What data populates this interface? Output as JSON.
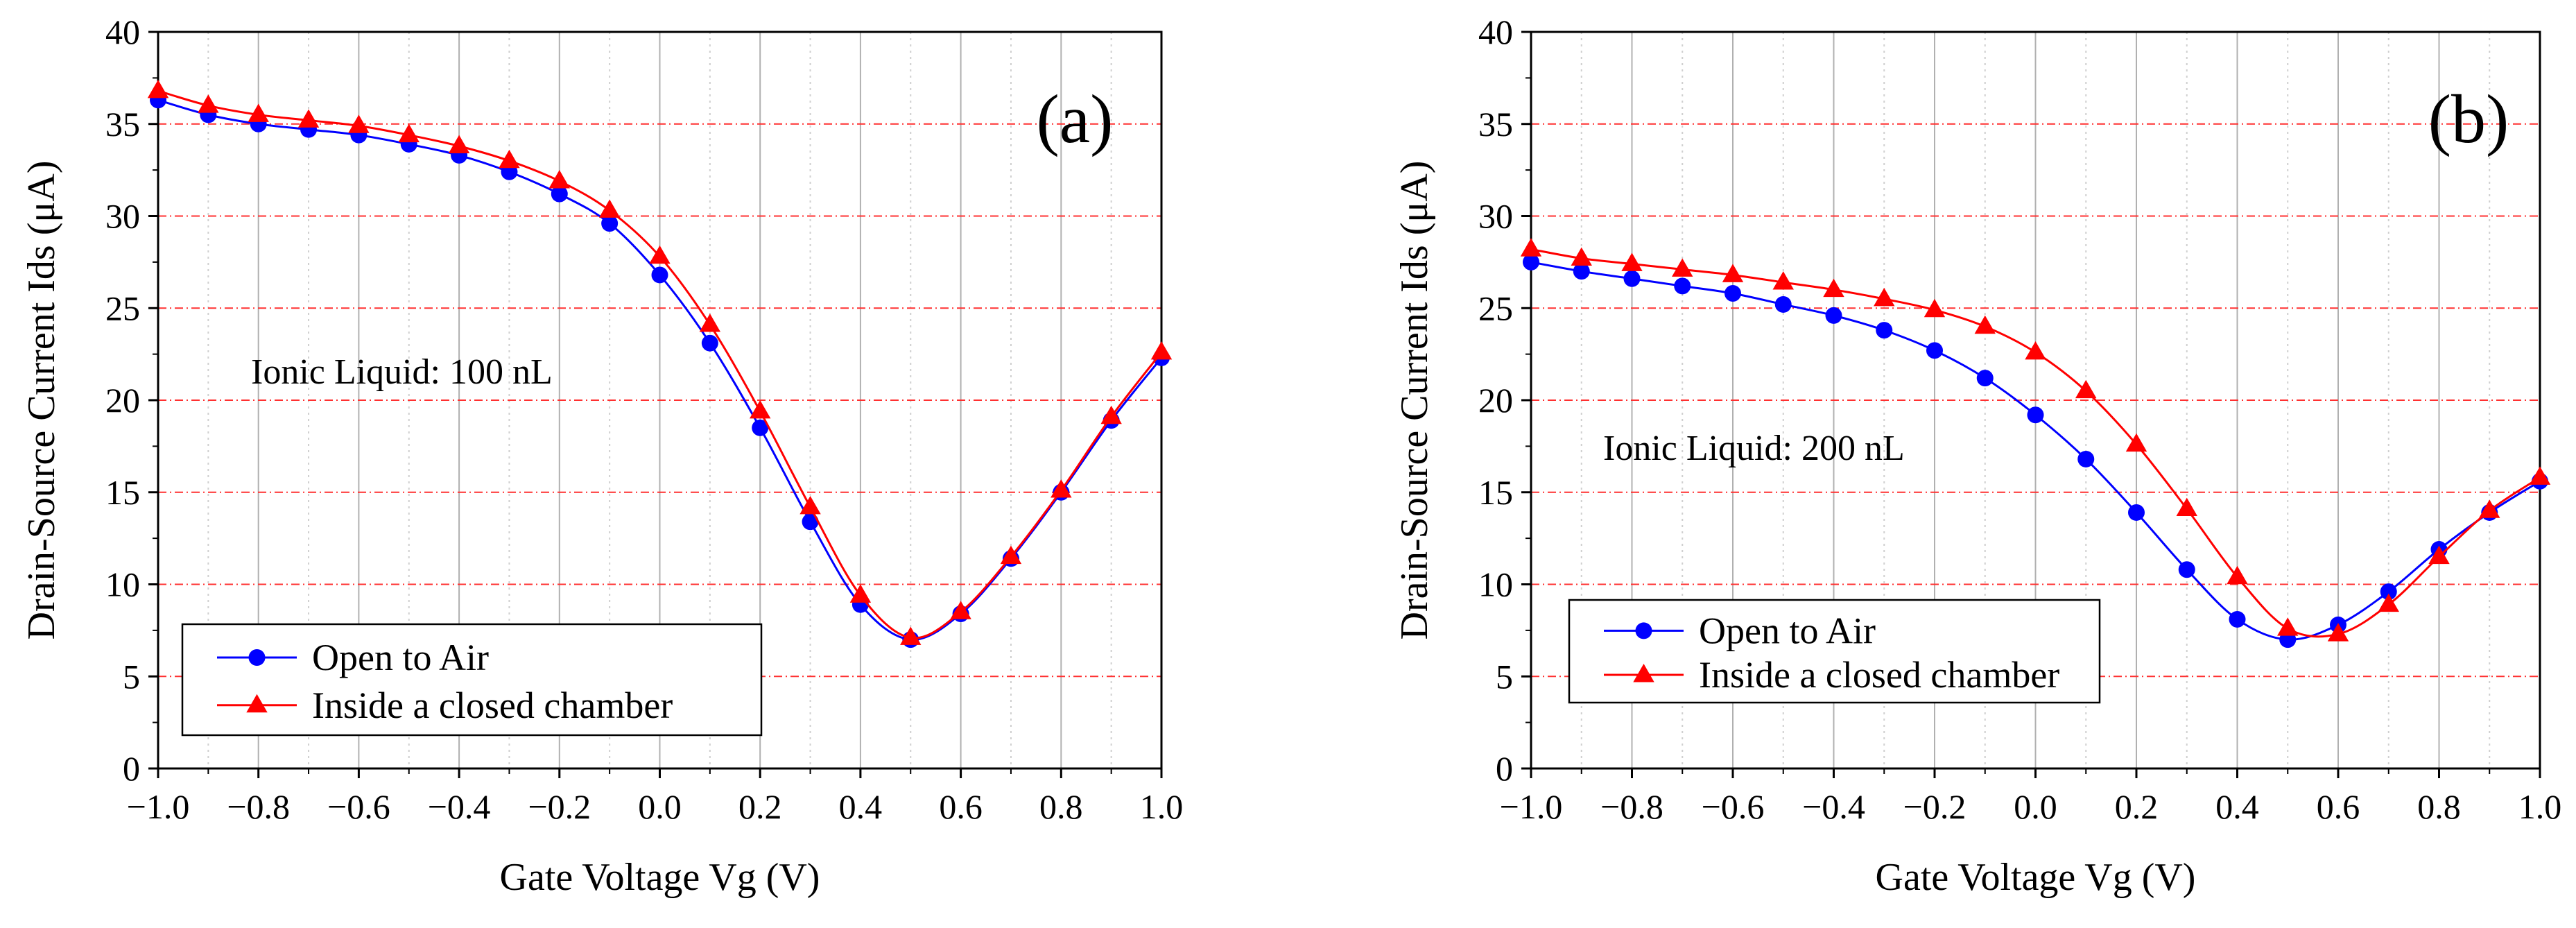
{
  "chart_data": [
    {
      "type": "line",
      "panel_label": "(a)",
      "annotation": "Ionic Liquid: 100 nL",
      "xlabel": "Gate Voltage Vg (V)",
      "ylabel": "Drain-Source Current Ids (μA)",
      "xlim": [
        -1.0,
        1.0
      ],
      "ylim": [
        0,
        40
      ],
      "x_ticks": [
        "−1.0",
        "−0.8",
        "−0.6",
        "−0.4",
        "−0.2",
        "0.0",
        "0.2",
        "0.4",
        "0.6",
        "0.8",
        "1.0"
      ],
      "y_ticks": [
        "0",
        "5",
        "10",
        "15",
        "20",
        "25",
        "30",
        "35",
        "40"
      ],
      "grid": true,
      "legend_position": "bottom-left",
      "x": [
        -1.0,
        -0.9,
        -0.8,
        -0.7,
        -0.6,
        -0.5,
        -0.4,
        -0.3,
        -0.2,
        -0.1,
        0.0,
        0.1,
        0.2,
        0.3,
        0.4,
        0.5,
        0.6,
        0.7,
        0.8,
        0.9,
        1.0
      ],
      "series": [
        {
          "name": "Open to Air",
          "color": "#0000ff",
          "marker": "circle",
          "values": [
            36.3,
            35.5,
            35.0,
            34.7,
            34.4,
            33.9,
            33.3,
            32.4,
            31.2,
            29.6,
            26.8,
            23.1,
            18.5,
            13.4,
            8.9,
            7.0,
            8.4,
            11.4,
            15.0,
            18.9,
            22.3
          ]
        },
        {
          "name": "Inside a closed chamber",
          "color": "#ff0000",
          "marker": "triangle",
          "values": [
            36.8,
            36.0,
            35.5,
            35.2,
            34.9,
            34.4,
            33.8,
            33.0,
            31.9,
            30.3,
            27.8,
            24.1,
            19.4,
            14.2,
            9.4,
            7.1,
            8.5,
            11.5,
            15.1,
            19.1,
            22.6
          ]
        }
      ]
    },
    {
      "type": "line",
      "panel_label": "(b)",
      "annotation": "Ionic Liquid: 200 nL",
      "xlabel": "Gate Voltage Vg (V)",
      "ylabel": "Drain-Source Current Ids (μA)",
      "xlim": [
        -1.0,
        1.0
      ],
      "ylim": [
        0,
        40
      ],
      "x_ticks": [
        "−1.0",
        "−0.8",
        "−0.6",
        "−0.4",
        "−0.2",
        "0.0",
        "0.2",
        "0.4",
        "0.6",
        "0.8",
        "1.0"
      ],
      "y_ticks": [
        "0",
        "5",
        "10",
        "15",
        "20",
        "25",
        "30",
        "35",
        "40"
      ],
      "grid": true,
      "legend_position": "bottom-left",
      "x": [
        -1.0,
        -0.9,
        -0.8,
        -0.7,
        -0.6,
        -0.5,
        -0.4,
        -0.3,
        -0.2,
        -0.1,
        0.0,
        0.1,
        0.2,
        0.3,
        0.4,
        0.5,
        0.6,
        0.7,
        0.8,
        0.9,
        1.0
      ],
      "series": [
        {
          "name": "Open to Air",
          "color": "#0000ff",
          "marker": "circle",
          "values": [
            27.5,
            27.0,
            26.6,
            26.2,
            25.8,
            25.2,
            24.6,
            23.8,
            22.7,
            21.2,
            19.2,
            16.8,
            13.9,
            10.8,
            8.1,
            7.0,
            7.8,
            9.6,
            11.9,
            13.9,
            15.6
          ]
        },
        {
          "name": "Inside a closed chamber",
          "color": "#ff0000",
          "marker": "triangle",
          "values": [
            28.2,
            27.7,
            27.4,
            27.1,
            26.8,
            26.4,
            26.0,
            25.5,
            24.9,
            24.0,
            22.6,
            20.5,
            17.6,
            14.1,
            10.4,
            7.6,
            7.3,
            8.9,
            11.5,
            14.0,
            15.8
          ]
        }
      ]
    }
  ]
}
